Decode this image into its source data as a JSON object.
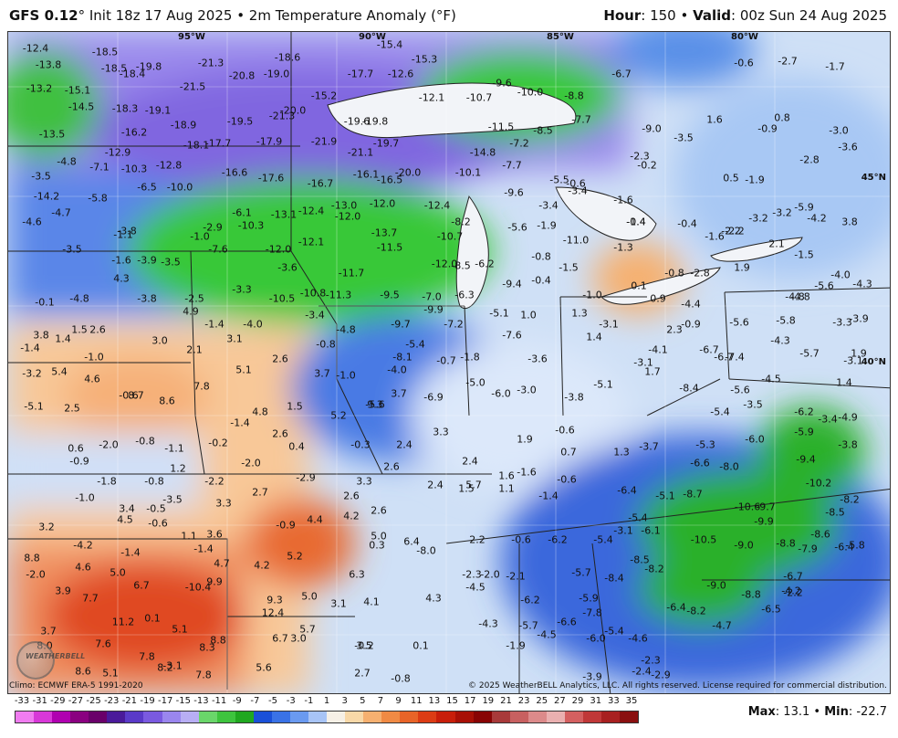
{
  "header": {
    "model": "GFS 0.12",
    "model_suffix": "° Init 18z 17 Aug 2025 • 2m Temperature Anomaly (°F)",
    "hour_label": "Hour",
    "hour_value": ": 150 • ",
    "valid_label": "Valid",
    "valid_value": ": 00z Sun 24 Aug 2025"
  },
  "map": {
    "longitudes": [
      "95°W",
      "90°W",
      "85°W",
      "80°W"
    ],
    "latitudes": [
      "45°N",
      "40°N"
    ],
    "values": [
      [
        "-12.4"
      ],
      [
        "-13.8"
      ],
      [
        "-18.5"
      ],
      [
        "-18.5"
      ],
      [
        "-18.4"
      ],
      [
        "-19.8"
      ],
      [
        "-21.3"
      ],
      [
        "-20.8"
      ],
      [
        "-19.0"
      ],
      [
        "-18.6"
      ],
      [
        "-15.4"
      ],
      [
        "-15.3"
      ],
      [
        "-12.6"
      ],
      [
        "-17.7"
      ],
      [
        "-13.2"
      ],
      [
        "-15.1"
      ],
      [
        "-21.5"
      ],
      [
        "-19.1"
      ],
      [
        "-18.3"
      ],
      [
        "-14.5"
      ],
      [
        "-18.9"
      ],
      [
        "-19.5"
      ],
      [
        "-21.3"
      ],
      [
        "-20.0"
      ],
      [
        "-15.2"
      ],
      [
        "-19.6"
      ],
      [
        "-19.8"
      ],
      [
        "-12.1"
      ],
      [
        "-10.7"
      ],
      [
        "-9.6"
      ],
      [
        "-10.0"
      ],
      [
        "-8.8"
      ],
      [
        "-6.7"
      ],
      [
        "-13.5"
      ],
      [
        "-16.2"
      ],
      [
        "-18.1"
      ],
      [
        "-17.7"
      ],
      [
        "-17.9"
      ],
      [
        "-21.9"
      ],
      [
        "-21.1"
      ],
      [
        "-19.7"
      ],
      [
        "-11.5"
      ],
      [
        "-8.5"
      ],
      [
        "-7.7"
      ],
      [
        "-7.2"
      ],
      [
        "-9.0"
      ],
      [
        "-3.5"
      ],
      [
        "-4.8"
      ],
      [
        "-7.1"
      ],
      [
        "-10.3"
      ],
      [
        "-12.9"
      ],
      [
        "-12.8"
      ],
      [
        "-16.6"
      ],
      [
        "-17.6"
      ],
      [
        "-16.1"
      ],
      [
        "-20.0"
      ],
      [
        "-16.7"
      ],
      [
        "-16.5"
      ],
      [
        "-14.8"
      ],
      [
        "-10.1"
      ],
      [
        "-7.7"
      ],
      [
        "-2.3"
      ],
      [
        "-0.2"
      ],
      [
        "-3.5"
      ],
      [
        "-6.5"
      ],
      [
        "-10.0"
      ],
      [
        "-14.2"
      ],
      [
        "-5.8"
      ],
      [
        "-6.1"
      ],
      [
        "-13.1"
      ],
      [
        "-12.4"
      ],
      [
        "-13.0"
      ],
      [
        "-12.0"
      ],
      [
        "-12.0"
      ],
      [
        "-12.4"
      ],
      [
        "-9.6"
      ],
      [
        "-5.5"
      ],
      [
        "-0.6"
      ],
      [
        "-3.4"
      ],
      [
        "-3.4"
      ],
      [
        "-1.6"
      ],
      [
        "-4.7"
      ],
      [
        "-4.6"
      ],
      [
        "-2.9"
      ],
      [
        "-10.3"
      ],
      [
        "-13.7"
      ],
      [
        "-10.7"
      ],
      [
        "-8.2"
      ],
      [
        "-5.6"
      ],
      [
        "-1.9"
      ],
      [
        "-1.4"
      ],
      [
        "-0.4"
      ],
      [
        "-2.2"
      ],
      [
        "-3.8"
      ],
      [
        "-1.1"
      ],
      [
        "-1.0"
      ],
      [
        "-7.6"
      ],
      [
        "-12.0"
      ],
      [
        "-12.1"
      ],
      [
        "-11.5"
      ],
      [
        "-11.0"
      ],
      [
        "-1.6"
      ],
      [
        "-2.2"
      ],
      [
        "-3.5"
      ],
      [
        "-1.6"
      ],
      [
        "-3.9"
      ],
      [
        "-3.5"
      ],
      [
        "-3.6"
      ],
      [
        "-11.7"
      ],
      [
        "-12.0"
      ],
      [
        "-8.5"
      ],
      [
        "-6.2"
      ],
      [
        "-0.8"
      ],
      [
        "-1.5"
      ],
      [
        "-1.3"
      ],
      [
        "4.3"
      ],
      [
        "-3.3"
      ],
      [
        "-10.5"
      ],
      [
        "-10.8"
      ],
      [
        "-11.3"
      ],
      [
        "-9.5"
      ],
      [
        "-9.4"
      ],
      [
        "-0.4"
      ],
      [
        "-0.8"
      ],
      [
        "-2.8"
      ],
      [
        "1.9"
      ],
      [
        "-0.1"
      ],
      [
        "-4.8"
      ],
      [
        "-3.8"
      ],
      [
        "-2.5"
      ],
      [
        "-7.0"
      ],
      [
        "-6.3"
      ],
      [
        "-1.0"
      ],
      [
        "0.1"
      ],
      [
        "-4.4"
      ],
      [
        "4.9"
      ],
      [
        "-3.4"
      ],
      [
        "-9.9"
      ],
      [
        "-5.1"
      ],
      [
        "1.0"
      ],
      [
        "1.3"
      ],
      [
        "0.9"
      ],
      [
        "-1.4"
      ],
      [
        "-4.0"
      ],
      [
        "-4.8"
      ],
      [
        "-9.7"
      ],
      [
        "-7.2"
      ],
      [
        "-3.1"
      ],
      [
        "-0.9"
      ],
      [
        "2.3"
      ],
      [
        "3.8"
      ],
      [
        "1.4"
      ],
      [
        "1.5"
      ],
      [
        "2.6"
      ],
      [
        "3.1"
      ],
      [
        "-0.8"
      ],
      [
        "-8.1"
      ],
      [
        "-5.4"
      ],
      [
        "-7.6"
      ],
      [
        "1.4"
      ],
      [
        "-4.1"
      ],
      [
        "-1.4"
      ],
      [
        "3.0"
      ],
      [
        "2.1"
      ],
      [
        "2.6"
      ],
      [
        "-1.8"
      ],
      [
        "-3.6"
      ],
      [
        "-3.1"
      ],
      [
        "1.7"
      ],
      [
        "-1.0"
      ],
      [
        "5.1"
      ],
      [
        "3.7"
      ],
      [
        "-1.0"
      ],
      [
        "-4.0"
      ],
      [
        "-5.0"
      ],
      [
        "-5.6"
      ],
      [
        "-5.1"
      ],
      [
        "-3.2"
      ],
      [
        "5.4"
      ],
      [
        "4.6"
      ],
      [
        "7.8"
      ],
      [
        "3.7"
      ],
      [
        "-6.9"
      ],
      [
        "-6.0"
      ],
      [
        "-3.0"
      ],
      [
        "-3.8"
      ],
      [
        "-0.6"
      ],
      [
        "8.7"
      ],
      [
        "8.6"
      ],
      [
        "9.3"
      ],
      [
        "-5.1"
      ],
      [
        "2.5"
      ],
      [
        "4.8"
      ],
      [
        "1.5"
      ],
      [
        "5.2"
      ],
      [
        "-1.4"
      ],
      [
        "2.6"
      ],
      [
        "3.3"
      ],
      [
        "-0.6"
      ],
      [
        "1.9"
      ],
      [
        "0.6"
      ],
      [
        "-2.0"
      ],
      [
        "-0.8"
      ],
      [
        "-1.1"
      ],
      [
        "-0.2"
      ],
      [
        "0.4"
      ],
      [
        "-0.3"
      ],
      [
        "2.4"
      ],
      [
        "0.7"
      ],
      [
        "1.3"
      ],
      [
        "-3.7"
      ],
      [
        "-0.9"
      ],
      [
        "-2.0"
      ],
      [
        "5.7"
      ],
      [
        "2.6"
      ],
      [
        "2.4"
      ],
      [
        "1.2"
      ],
      [
        "-2.9"
      ],
      [
        "3.3"
      ],
      [
        "1.6"
      ],
      [
        "-1.6"
      ],
      [
        "-0.6"
      ],
      [
        "-1.8"
      ],
      [
        "-0.8"
      ],
      [
        "-2.2"
      ],
      [
        "2.4"
      ],
      [
        "1.5"
      ],
      [
        "1.1"
      ],
      [
        "-1.4"
      ],
      [
        "-1.0"
      ],
      [
        "-3.5"
      ],
      [
        "3.3"
      ],
      [
        "2.7"
      ],
      [
        "2.6"
      ],
      [
        "3.4"
      ],
      [
        "-0.5"
      ],
      [
        "2.6"
      ],
      [
        "4.5"
      ],
      [
        "-0.6"
      ],
      [
        "-0.9"
      ],
      [
        "4.4"
      ],
      [
        "4.2"
      ],
      [
        "3.2"
      ],
      [
        "1.1"
      ],
      [
        "3.6"
      ],
      [
        "5.0"
      ],
      [
        "2.2"
      ],
      [
        "-0.6"
      ],
      [
        "-4.2"
      ],
      [
        "-1.4"
      ],
      [
        "6.4"
      ],
      [
        "0.3"
      ],
      [
        "-8.0"
      ],
      [
        "-1.4"
      ],
      [
        "5.2"
      ],
      [
        "8.8"
      ],
      [
        "4.6"
      ],
      [
        "4.7"
      ],
      [
        "4.2"
      ],
      [
        "5.0"
      ],
      [
        "6.3"
      ],
      [
        "-2.3"
      ],
      [
        "-2.0"
      ],
      [
        "-2.1"
      ],
      [
        "-4.5"
      ],
      [
        "-2.0"
      ],
      [
        "3.9"
      ],
      [
        "6.7"
      ],
      [
        "-10.4"
      ],
      [
        "9.9"
      ],
      [
        "7.7"
      ],
      [
        "9.3"
      ],
      [
        "5.0"
      ],
      [
        "3.1"
      ],
      [
        "4.1"
      ],
      [
        "4.3"
      ],
      [
        "0.1"
      ],
      [
        "11.2"
      ],
      [
        "12.4"
      ],
      [
        "5.1"
      ],
      [
        "8.8"
      ],
      [
        "5.7"
      ],
      [
        "3.7"
      ],
      [
        "8.0"
      ],
      [
        "7.6"
      ],
      [
        "8.3"
      ],
      [
        "6.7"
      ],
      [
        "3.0"
      ],
      [
        "3.5"
      ],
      [
        "-0.2"
      ],
      [
        "0.1"
      ],
      [
        "-3.1"
      ],
      [
        "7.8"
      ],
      [
        "8.6"
      ],
      [
        "5.1"
      ],
      [
        "8.2"
      ],
      [
        "7.8"
      ],
      [
        "5.6"
      ],
      [
        "2.7"
      ],
      [
        "-0.8"
      ],
      [
        "-0.7"
      ]
    ]
  },
  "east_values": [
    "-5.6",
    "-5.8",
    "-4.3",
    "-3.3",
    "-3.9",
    "-4.8",
    "-5.7",
    "1.9",
    "-6.7",
    "-7.4",
    "1.4",
    "-8.4",
    "-5.6",
    "-3.5",
    "-4.5",
    "-5.4",
    "-6.2",
    "-5.9",
    "-3.4",
    "-4.9",
    "-9.4",
    "-6.0",
    "-5.3",
    "-3.8",
    "-6.6",
    "-8.0",
    "-10.2",
    "-8.7",
    "-10.6",
    "-9.7",
    "-9.9",
    "-8.2",
    "-8.5",
    "-5.1",
    "-6.1",
    "-10.5",
    "-9.0",
    "-8.8",
    "-7.9",
    "-8.6",
    "-5.8",
    "-6.4",
    "-8.5",
    "-8.2",
    "-8.4",
    "-9.0",
    "-6.7",
    "-8.8",
    "-6.4",
    "-6.5",
    "-8.2",
    "-5.4",
    "-4.6",
    "-4.7",
    "-2.3",
    "-2.4",
    "-2.9",
    "-3.9",
    "-6.0",
    "-6.6",
    "-7.8",
    "-5.7",
    "-6.2",
    "-5.9",
    "-5.4",
    "-3.1",
    "-4.3",
    "-5.7",
    "-4.5",
    "-1.9",
    "-6.2",
    "-5.4",
    "-6.4",
    "-2.8",
    "-3.6",
    "-1.9",
    "0.5",
    "1.6",
    "-0.9",
    "0.8",
    "-1.5",
    "-0.4",
    "-2.7",
    "-1.7",
    "-0.6",
    "-3.0",
    "-5.9",
    "-3.2",
    "-3.2",
    "-4.2",
    "3.8",
    "2.1",
    "-4.0",
    "-5.6",
    "-4.3",
    "-4.8",
    "-2.2",
    "-3.1",
    "-6.7",
    "-4.2"
  ],
  "footer": {
    "climo": "Climo: ECMWF ERA-5 1991-2020",
    "copyright": "© 2025 WeatherBELL Analytics, LLC. All rights reserved. License required for commercial distribution.",
    "logo_text": "WEATHERBELL",
    "max_label": "Max",
    "max_value": ": 13.1 • ",
    "min_label": "Min",
    "min_value": ": -22.7"
  },
  "colorbar": {
    "ticks": [
      "-33",
      "-31",
      "-29",
      "-27",
      "-25",
      "-23",
      "-21",
      "-19",
      "-17",
      "-15",
      "-13",
      "-11",
      "-9",
      "-7",
      "-5",
      "-3",
      "-1",
      "1",
      "3",
      "5",
      "7",
      "9",
      "11",
      "13",
      "15",
      "17",
      "19",
      "21",
      "23",
      "25",
      "27",
      "29",
      "31",
      "33",
      "35"
    ],
    "colors": [
      "#f07cf0",
      "#d838d8",
      "#b000b0",
      "#8a0080",
      "#6a006a",
      "#4a1a9a",
      "#5a3ac8",
      "#7a5ae0",
      "#9a86ee",
      "#b8aef4",
      "#6ad66a",
      "#3ec43e",
      "#20a820",
      "#1a50d8",
      "#3a72e6",
      "#6a9af0",
      "#a8c4f6",
      "#f6f0e6",
      "#f8d8a8",
      "#f6b070",
      "#f08a44",
      "#e86428",
      "#dc3c14",
      "#c81e0a",
      "#a81006",
      "#880404",
      "#a83a3a",
      "#c86060",
      "#dc8a8a",
      "#eab0b0",
      "#d46060",
      "#c03838",
      "#a82020",
      "#8a1010"
    ]
  }
}
